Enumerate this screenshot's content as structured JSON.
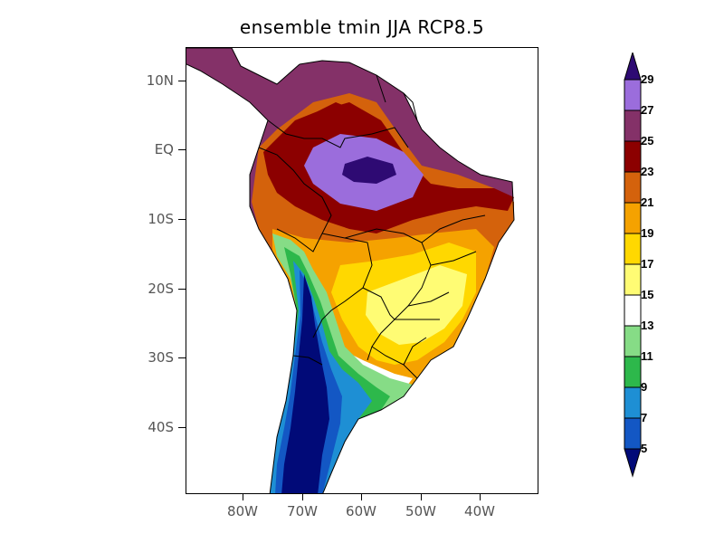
{
  "title": "ensemble tmin JJA RCP8.5",
  "map": {
    "lat_labels": [
      "10N",
      "EQ",
      "10S",
      "20S",
      "30S",
      "40S"
    ],
    "lon_labels": [
      "80W",
      "70W",
      "60W",
      "50W",
      "40W"
    ]
  },
  "colorbar": {
    "labels": [
      "29",
      "27",
      "25",
      "23",
      "21",
      "19",
      "17",
      "15",
      "13",
      "11",
      "9",
      "7",
      "5"
    ],
    "colors": [
      "#2e0a73",
      "#9b6ddc",
      "#843168",
      "#8c0000",
      "#d4620c",
      "#f5a200",
      "#ffd800",
      "#fffc74",
      "#ffffff",
      "#86dc86",
      "#2db84b",
      "#1e8fd4",
      "#1357c4",
      "#010a78"
    ]
  }
}
